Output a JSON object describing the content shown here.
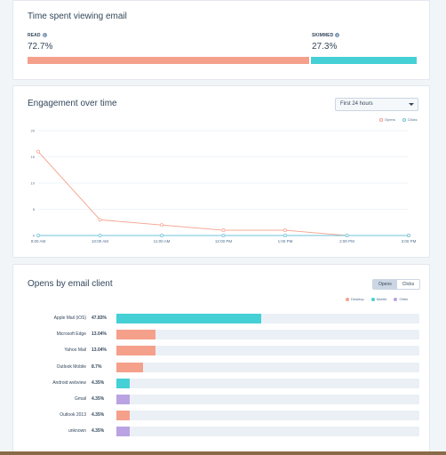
{
  "colors": {
    "read": "#f5a08b",
    "skimmed": "#45d0d6",
    "desktop": "#f5a08b",
    "mobile": "#45d0d6",
    "other": "#b9a3e3",
    "opens_line": "#f5a08b",
    "clicks_line": "#6fc3d9"
  },
  "time_spent": {
    "title": "Time spent viewing email",
    "read_label": "READ",
    "read_value": "72.7%",
    "read_fraction": 0.727,
    "skimmed_label": "SKIMMED",
    "skimmed_value": "27.3%",
    "skimmed_fraction": 0.273,
    "info_icon": "info-icon"
  },
  "engagement": {
    "title": "Engagement over time",
    "range_select": "First 24 hours",
    "legend": {
      "opens": "Opens",
      "clicks": "Clicks"
    },
    "chart_data": {
      "type": "line",
      "x": [
        "9:00 AM",
        "10:00 AM",
        "11:00 AM",
        "12:00 PM",
        "1:00 PM",
        "2:00 PM",
        "3:00 PM"
      ],
      "series": [
        {
          "name": "Opens",
          "values": [
            16,
            3,
            2,
            1,
            1,
            0,
            0
          ]
        },
        {
          "name": "Clicks",
          "values": [
            0,
            0,
            0,
            0,
            0,
            0,
            0
          ]
        }
      ],
      "yticks": [
        "0",
        "5",
        "10",
        "15",
        "20"
      ],
      "ylim": [
        0,
        20
      ],
      "grid": true,
      "legend": "top-right"
    }
  },
  "clients": {
    "title": "Opens by email client",
    "toggle": {
      "opens": "Opens",
      "clicks": "Clicks",
      "active": "opens"
    },
    "legend": {
      "desktop": "Desktop",
      "mobile": "Mobile",
      "other": "Other"
    },
    "rows": [
      {
        "label": "Apple Mail (iOS)",
        "pct": "47.83%",
        "value": 47.83,
        "kind": "mobile"
      },
      {
        "label": "Microsoft Edge",
        "pct": "13.04%",
        "value": 13.04,
        "kind": "desktop"
      },
      {
        "label": "Yahoo Mail",
        "pct": "13.04%",
        "value": 13.04,
        "kind": "desktop"
      },
      {
        "label": "Outlook Mobile",
        "pct": "8.7%",
        "value": 8.7,
        "kind": "desktop"
      },
      {
        "label": "Android webview",
        "pct": "4.35%",
        "value": 4.35,
        "kind": "mobile"
      },
      {
        "label": "Gmail",
        "pct": "4.35%",
        "value": 4.35,
        "kind": "other"
      },
      {
        "label": "Outlook 2013",
        "pct": "4.35%",
        "value": 4.35,
        "kind": "desktop"
      },
      {
        "label": "unknown",
        "pct": "4.35%",
        "value": 4.35,
        "kind": "other"
      }
    ],
    "scale_max": 100
  }
}
